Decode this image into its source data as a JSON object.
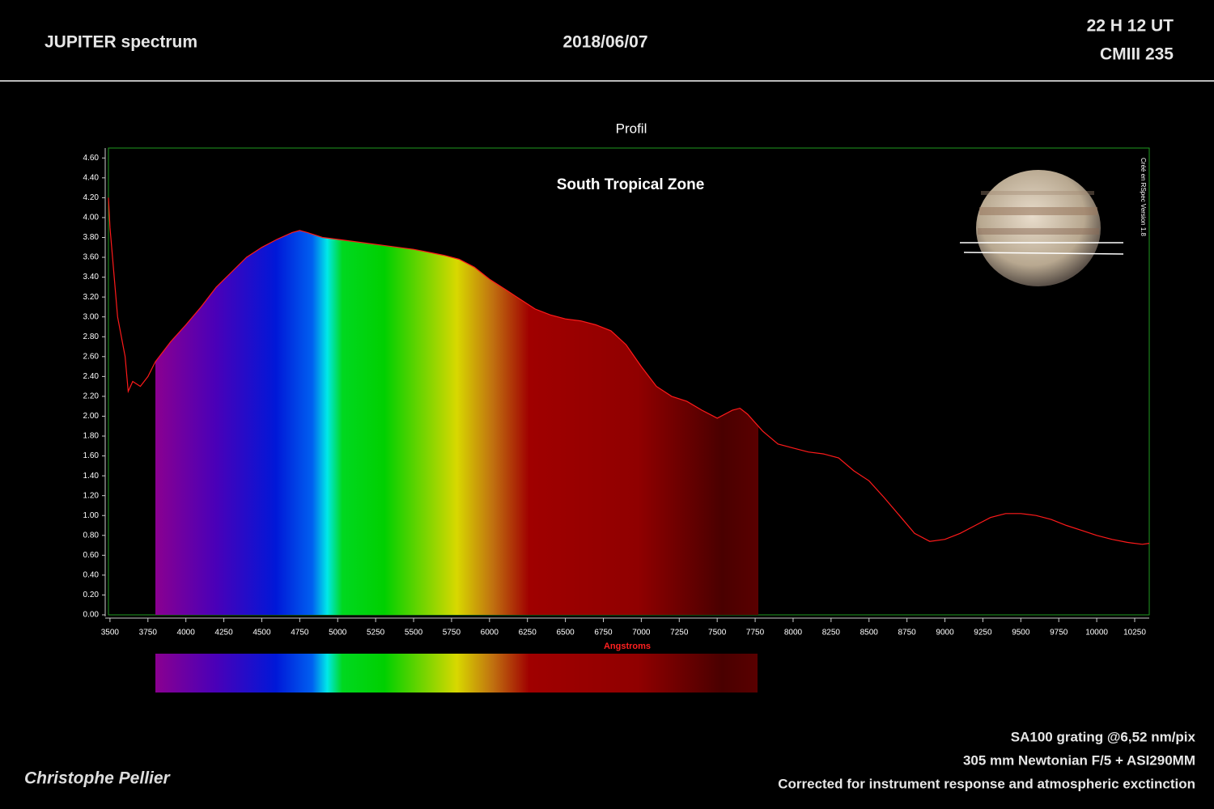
{
  "header": {
    "title": "JUPITER spectrum",
    "date": "2018/06/07",
    "time": "22 H 12 UT",
    "cm": "CMIII 235"
  },
  "footer": {
    "lines": [
      "SA100 grating @6,52 nm/pix",
      "305 mm Newtonian F/5 + ASI290MM",
      "Corrected for instrument response and atmospheric exctinction"
    ],
    "author": "Christophe Pellier"
  },
  "chart_data": {
    "type": "line",
    "title": "Profil",
    "annotation": "South Tropical Zone",
    "side_note": "Créé en RSpec Version 1.8",
    "x_label": "Angstroms",
    "color": "#ff1a1a",
    "frame_color": "#1f9a1f",
    "x": [
      3490,
      3500,
      3550,
      3600,
      3620,
      3650,
      3700,
      3750,
      3800,
      3900,
      4000,
      4100,
      4200,
      4300,
      4400,
      4500,
      4600,
      4700,
      4750,
      4800,
      4900,
      5000,
      5100,
      5200,
      5300,
      5400,
      5500,
      5600,
      5700,
      5800,
      5900,
      6000,
      6100,
      6200,
      6300,
      6400,
      6500,
      6600,
      6700,
      6800,
      6900,
      7000,
      7100,
      7200,
      7300,
      7400,
      7500,
      7600,
      7650,
      7700,
      7800,
      7900,
      8000,
      8100,
      8200,
      8300,
      8400,
      8500,
      8600,
      8700,
      8800,
      8900,
      9000,
      9100,
      9200,
      9300,
      9400,
      9500,
      9600,
      9700,
      9800,
      9900,
      10000,
      10100,
      10200,
      10300,
      10346
    ],
    "values": [
      4.2,
      3.9,
      3.0,
      2.6,
      2.25,
      2.35,
      2.3,
      2.4,
      2.55,
      2.75,
      2.92,
      3.1,
      3.3,
      3.45,
      3.6,
      3.7,
      3.78,
      3.85,
      3.87,
      3.85,
      3.8,
      3.78,
      3.76,
      3.74,
      3.72,
      3.7,
      3.68,
      3.65,
      3.62,
      3.58,
      3.5,
      3.38,
      3.28,
      3.18,
      3.08,
      3.02,
      2.98,
      2.96,
      2.92,
      2.86,
      2.72,
      2.5,
      2.3,
      2.2,
      2.15,
      2.06,
      1.98,
      2.06,
      2.08,
      2.02,
      1.85,
      1.72,
      1.68,
      1.64,
      1.62,
      1.58,
      1.45,
      1.35,
      1.18,
      1.0,
      0.82,
      0.74,
      0.76,
      0.82,
      0.9,
      0.98,
      1.02,
      1.02,
      1.0,
      0.96,
      0.9,
      0.85,
      0.8,
      0.76,
      0.73,
      0.71,
      0.72
    ],
    "xlim": [
      3490,
      10346
    ],
    "ylim": [
      0,
      4.7
    ],
    "xticks": [
      3500,
      3750,
      4000,
      4250,
      4500,
      4750,
      5000,
      5250,
      5500,
      5750,
      6000,
      6250,
      6500,
      6750,
      7000,
      7250,
      7500,
      7750,
      8000,
      8250,
      8500,
      8750,
      9000,
      9250,
      9500,
      9750,
      10000,
      10250
    ],
    "yticks": [
      {
        "value": 0,
        "label": "0.00"
      },
      {
        "value": 0.2,
        "label": "0.20"
      },
      {
        "value": 0.4,
        "label": "0.40"
      },
      {
        "value": 0.6,
        "label": "0.60"
      },
      {
        "value": 0.8,
        "label": "0.80"
      },
      {
        "value": 1,
        "label": "1.00"
      },
      {
        "value": 1.2,
        "label": "1.20"
      },
      {
        "value": 1.4,
        "label": "1.40"
      },
      {
        "value": 1.6,
        "label": "1.60"
      },
      {
        "value": 1.8,
        "label": "1.80"
      },
      {
        "value": 2,
        "label": "2.00"
      },
      {
        "value": 2.2,
        "label": "2.20"
      },
      {
        "value": 2.4,
        "label": "2.40"
      },
      {
        "value": 2.6,
        "label": "2.60"
      },
      {
        "value": 2.8,
        "label": "2.80"
      },
      {
        "value": 3,
        "label": "3.00"
      },
      {
        "value": 3.2,
        "label": "3.20"
      },
      {
        "value": 3.4,
        "label": "3.40"
      },
      {
        "value": 3.6,
        "label": "3.60"
      },
      {
        "value": 3.8,
        "label": "3.80"
      },
      {
        "value": 4,
        "label": "4.00"
      },
      {
        "value": 4.2,
        "label": "4.20"
      },
      {
        "value": 4.4,
        "label": "4.40"
      },
      {
        "value": 4.6,
        "label": "4.60"
      }
    ]
  }
}
